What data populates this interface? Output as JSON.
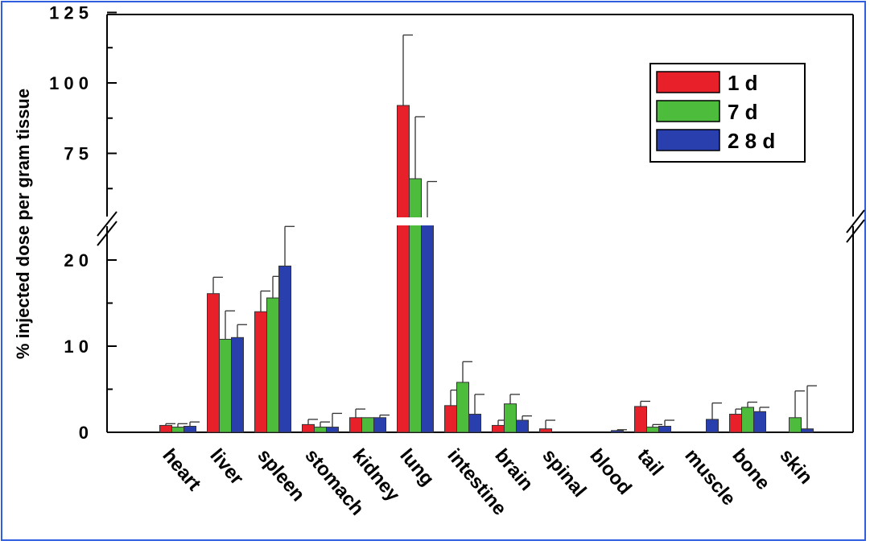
{
  "chart_data": {
    "type": "bar",
    "ylabel": "% injected dose per gram tissue",
    "categories": [
      "heart",
      "liver",
      "spleen",
      "stomach",
      "kidney",
      "lung",
      "intestine",
      "brain",
      "spinal",
      "blood",
      "tail",
      "muscle",
      "bone",
      "skin"
    ],
    "series": [
      {
        "name": "1   d",
        "color": "#e8202a",
        "values": [
          0.8,
          16.1,
          14.0,
          0.9,
          1.7,
          92.0,
          3.1,
          0.8,
          0.4,
          0.0,
          3.0,
          0.0,
          2.1,
          0.0
        ],
        "errors": [
          0.2,
          1.9,
          2.4,
          0.6,
          1.0,
          25.0,
          1.8,
          0.6,
          1.0,
          0.0,
          0.6,
          0.0,
          0.6,
          0.0
        ]
      },
      {
        "name": "7   d",
        "color": "#4dbb3c",
        "values": [
          0.6,
          10.8,
          15.6,
          0.6,
          1.7,
          66.0,
          5.8,
          3.3,
          0.0,
          0.0,
          0.6,
          0.0,
          2.9,
          1.7
        ],
        "errors": [
          0.4,
          3.3,
          2.5,
          0.6,
          0.0,
          22.0,
          2.4,
          1.1,
          0.0,
          0.0,
          0.3,
          0.0,
          0.6,
          3.1
        ]
      },
      {
        "name": "2 8   d",
        "color": "#2a3fae",
        "values": [
          0.7,
          11.0,
          19.3,
          0.6,
          1.7,
          50.0,
          2.1,
          1.4,
          0.0,
          0.2,
          0.7,
          1.5,
          2.4,
          0.4
        ],
        "errors": [
          0.5,
          1.5,
          4.6,
          1.6,
          0.3,
          15.0,
          2.3,
          0.5,
          0.0,
          0.1,
          0.7,
          1.9,
          0.5,
          5.0
        ]
      }
    ],
    "yticks_lower": [
      "0",
      "1 0",
      "2 0"
    ],
    "yticks_upper": [
      "7 5",
      "1 0 0",
      "1 2 5"
    ],
    "ylim_lower": [
      0,
      24.5
    ],
    "ylim_upper": [
      50,
      125
    ],
    "axis_break": true,
    "error_bars": "positive only",
    "legend_position": "top-right"
  }
}
